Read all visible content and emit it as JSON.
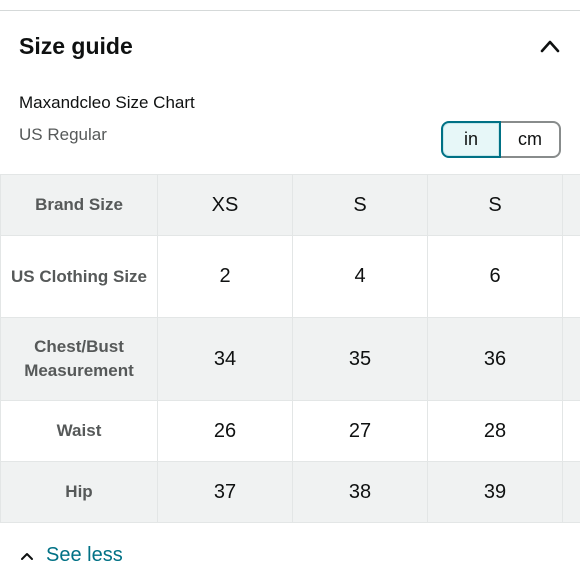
{
  "section": {
    "title": "Size guide",
    "collapse_icon": "chevron-up-icon"
  },
  "chart": {
    "name": "Maxandcleo Size Chart",
    "subtitle": "US Regular"
  },
  "units": {
    "options": [
      "in",
      "cm"
    ],
    "selected": "in",
    "accent_color": "#007185"
  },
  "table": {
    "rows": [
      {
        "label": "Brand Size",
        "values": [
          "XS",
          "S",
          "S"
        ]
      },
      {
        "label": "US Clothing Size",
        "values": [
          "2",
          "4",
          "6"
        ]
      },
      {
        "label": "Chest/Bust Measurement",
        "values": [
          "34",
          "35",
          "36"
        ]
      },
      {
        "label": "Waist",
        "values": [
          "26",
          "27",
          "28"
        ]
      },
      {
        "label": "Hip",
        "values": [
          "37",
          "38",
          "39"
        ]
      }
    ]
  },
  "footer": {
    "see_less_label": "See less",
    "see_less_icon": "chevron-up-icon",
    "link_color": "#007185"
  }
}
